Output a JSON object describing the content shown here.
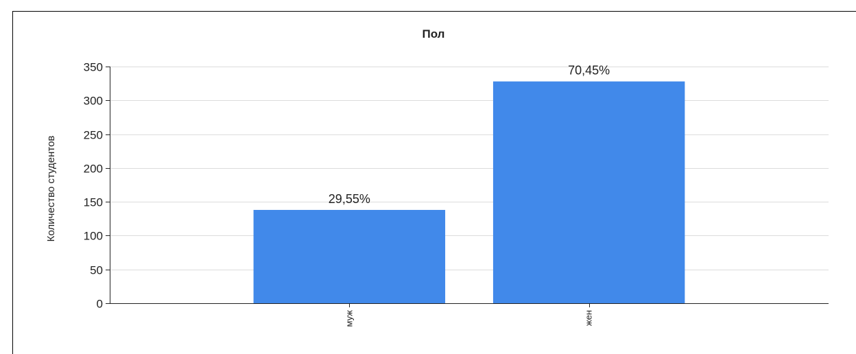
{
  "chart_data": {
    "type": "bar",
    "title": "Пол",
    "xlabel": "",
    "ylabel": "Количество студентов",
    "categories": [
      "муж",
      "жен"
    ],
    "values": [
      138,
      328
    ],
    "data_labels": [
      "29,55%",
      "70,45%"
    ],
    "ylim": [
      0,
      350
    ],
    "yticks": [
      0,
      50,
      100,
      150,
      200,
      250,
      300,
      350
    ],
    "ytick_labels": [
      "0",
      "50",
      "100",
      "150",
      "200",
      "250",
      "300",
      "350"
    ],
    "grid": true,
    "legend": "none",
    "colors": {
      "bar": "#4189ea",
      "grid": "#dcdcdc",
      "axis": "#222222"
    }
  }
}
